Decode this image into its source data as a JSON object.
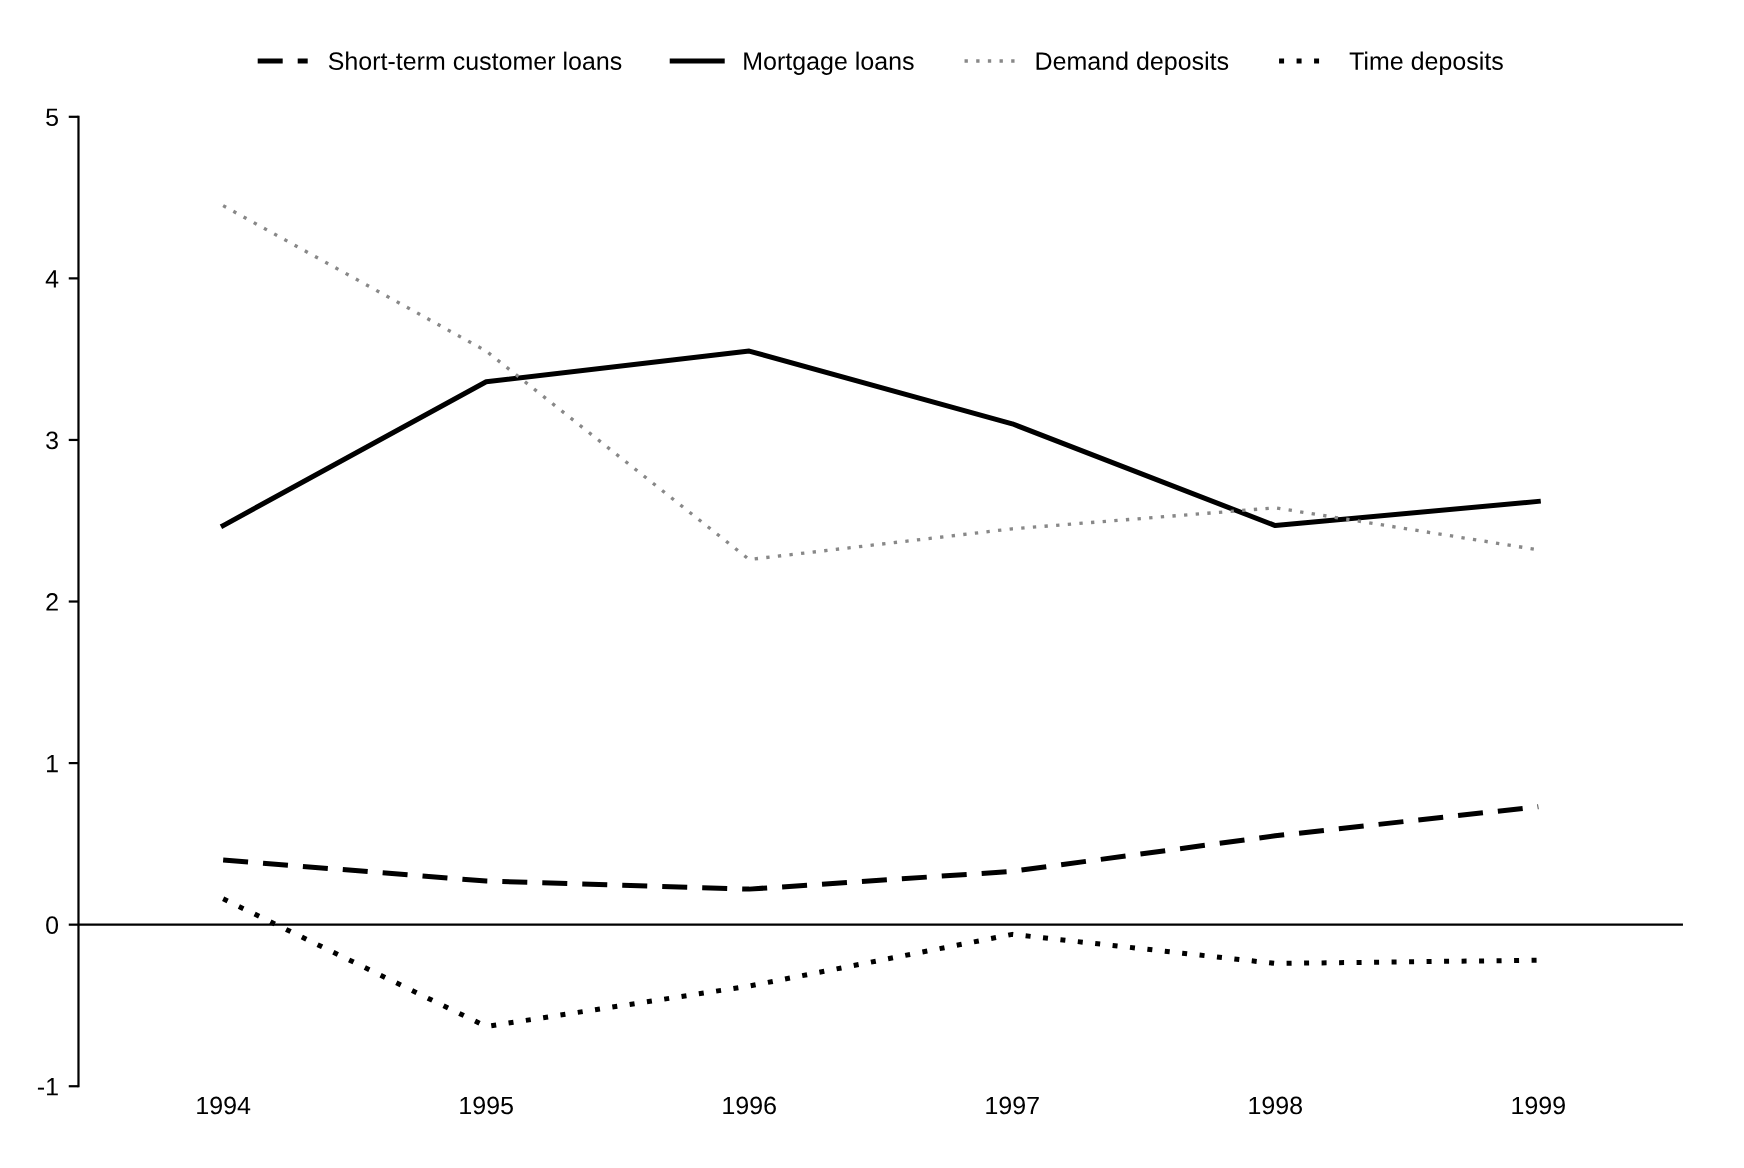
{
  "chart_data": {
    "type": "line",
    "categories": [
      "1994",
      "1995",
      "1996",
      "1997",
      "1998",
      "1999"
    ],
    "series": [
      {
        "name": "Short-term customer loans",
        "color": "#000000",
        "line_style": "dashed",
        "values": [
          0.4,
          0.27,
          0.22,
          0.33,
          0.55,
          0.73
        ]
      },
      {
        "name": "Mortgage loans",
        "color": "#000000",
        "line_style": "solid",
        "values": [
          2.47,
          3.36,
          3.55,
          3.1,
          2.47,
          2.62
        ]
      },
      {
        "name": "Demand deposits",
        "color": "#888888",
        "line_style": "dotted",
        "values": [
          4.45,
          3.55,
          2.26,
          2.45,
          2.58,
          2.32
        ]
      },
      {
        "name": "Time deposits",
        "color": "#000000",
        "line_style": "dotted",
        "values": [
          0.16,
          -0.63,
          -0.38,
          -0.06,
          -0.24,
          -0.22
        ]
      }
    ],
    "ylim": [
      -1,
      5
    ],
    "yticks": [
      -1,
      0,
      1,
      2,
      3,
      4,
      5
    ],
    "grid": false,
    "legend": "top",
    "ref_lines": [
      {
        "axis": "y",
        "value": 0,
        "color": "#000000",
        "line_style": "solid"
      }
    ]
  }
}
